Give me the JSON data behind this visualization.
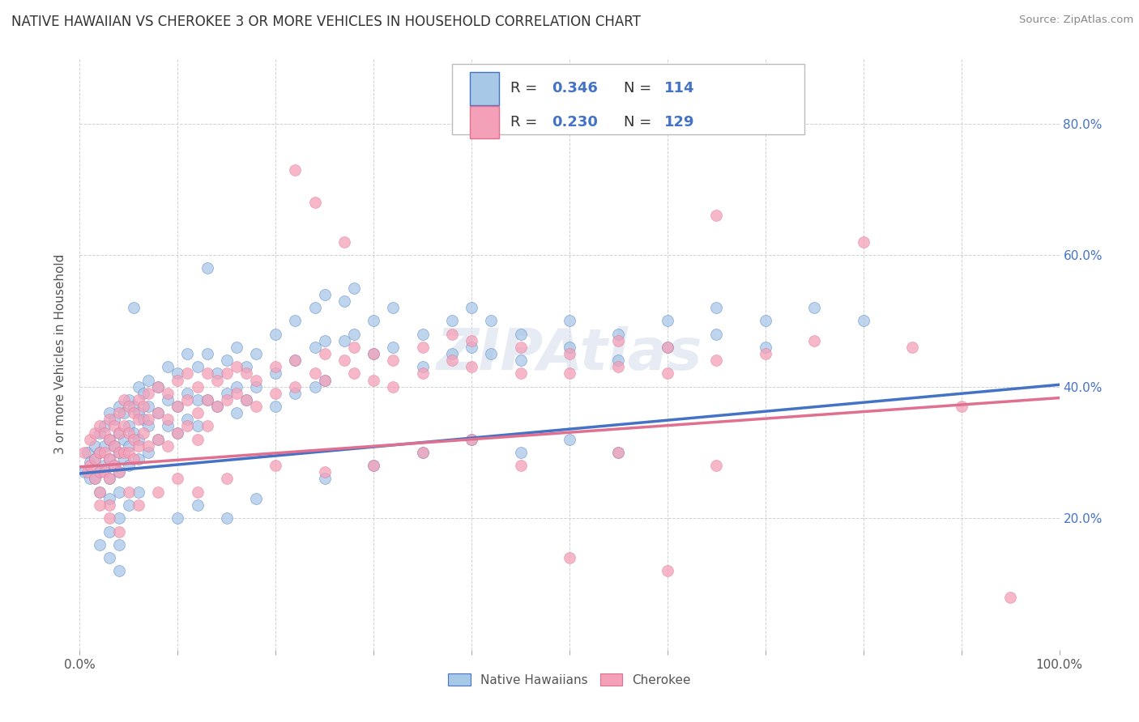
{
  "title": "NATIVE HAWAIIAN VS CHEROKEE 3 OR MORE VEHICLES IN HOUSEHOLD CORRELATION CHART",
  "source": "Source: ZipAtlas.com",
  "ylabel": "3 or more Vehicles in Household",
  "color_blue": "#a8c8e8",
  "color_pink": "#f4a0b8",
  "line_blue": "#4472c4",
  "line_pink": "#e07090",
  "blue_r": 0.346,
  "pink_r": 0.23,
  "xlim": [
    0.0,
    1.0
  ],
  "ylim": [
    0.0,
    0.9
  ],
  "blue_points": [
    [
      0.005,
      0.27
    ],
    [
      0.008,
      0.3
    ],
    [
      0.01,
      0.285
    ],
    [
      0.01,
      0.26
    ],
    [
      0.015,
      0.31
    ],
    [
      0.015,
      0.29
    ],
    [
      0.015,
      0.26
    ],
    [
      0.02,
      0.33
    ],
    [
      0.02,
      0.3
    ],
    [
      0.02,
      0.27
    ],
    [
      0.02,
      0.24
    ],
    [
      0.025,
      0.34
    ],
    [
      0.025,
      0.31
    ],
    [
      0.025,
      0.28
    ],
    [
      0.03,
      0.36
    ],
    [
      0.03,
      0.32
    ],
    [
      0.03,
      0.29
    ],
    [
      0.03,
      0.26
    ],
    [
      0.03,
      0.23
    ],
    [
      0.035,
      0.35
    ],
    [
      0.035,
      0.31
    ],
    [
      0.035,
      0.28
    ],
    [
      0.04,
      0.37
    ],
    [
      0.04,
      0.33
    ],
    [
      0.04,
      0.3
    ],
    [
      0.04,
      0.27
    ],
    [
      0.04,
      0.24
    ],
    [
      0.045,
      0.36
    ],
    [
      0.045,
      0.32
    ],
    [
      0.045,
      0.29
    ],
    [
      0.05,
      0.38
    ],
    [
      0.05,
      0.34
    ],
    [
      0.05,
      0.31
    ],
    [
      0.05,
      0.28
    ],
    [
      0.055,
      0.52
    ],
    [
      0.055,
      0.37
    ],
    [
      0.055,
      0.33
    ],
    [
      0.06,
      0.4
    ],
    [
      0.06,
      0.36
    ],
    [
      0.06,
      0.32
    ],
    [
      0.06,
      0.29
    ],
    [
      0.065,
      0.39
    ],
    [
      0.065,
      0.35
    ],
    [
      0.07,
      0.41
    ],
    [
      0.07,
      0.37
    ],
    [
      0.07,
      0.34
    ],
    [
      0.07,
      0.3
    ],
    [
      0.08,
      0.4
    ],
    [
      0.08,
      0.36
    ],
    [
      0.08,
      0.32
    ],
    [
      0.09,
      0.43
    ],
    [
      0.09,
      0.38
    ],
    [
      0.09,
      0.34
    ],
    [
      0.1,
      0.42
    ],
    [
      0.1,
      0.37
    ],
    [
      0.1,
      0.33
    ],
    [
      0.11,
      0.45
    ],
    [
      0.11,
      0.39
    ],
    [
      0.11,
      0.35
    ],
    [
      0.12,
      0.43
    ],
    [
      0.12,
      0.38
    ],
    [
      0.12,
      0.34
    ],
    [
      0.13,
      0.58
    ],
    [
      0.13,
      0.45
    ],
    [
      0.13,
      0.38
    ],
    [
      0.14,
      0.42
    ],
    [
      0.14,
      0.37
    ],
    [
      0.15,
      0.44
    ],
    [
      0.15,
      0.39
    ],
    [
      0.16,
      0.46
    ],
    [
      0.16,
      0.4
    ],
    [
      0.16,
      0.36
    ],
    [
      0.17,
      0.43
    ],
    [
      0.17,
      0.38
    ],
    [
      0.18,
      0.45
    ],
    [
      0.18,
      0.4
    ],
    [
      0.2,
      0.48
    ],
    [
      0.2,
      0.42
    ],
    [
      0.2,
      0.37
    ],
    [
      0.22,
      0.5
    ],
    [
      0.22,
      0.44
    ],
    [
      0.22,
      0.39
    ],
    [
      0.24,
      0.52
    ],
    [
      0.24,
      0.46
    ],
    [
      0.24,
      0.4
    ],
    [
      0.25,
      0.54
    ],
    [
      0.25,
      0.47
    ],
    [
      0.25,
      0.41
    ],
    [
      0.27,
      0.53
    ],
    [
      0.27,
      0.47
    ],
    [
      0.28,
      0.55
    ],
    [
      0.28,
      0.48
    ],
    [
      0.3,
      0.5
    ],
    [
      0.3,
      0.45
    ],
    [
      0.32,
      0.52
    ],
    [
      0.32,
      0.46
    ],
    [
      0.35,
      0.48
    ],
    [
      0.35,
      0.43
    ],
    [
      0.38,
      0.5
    ],
    [
      0.38,
      0.45
    ],
    [
      0.4,
      0.52
    ],
    [
      0.4,
      0.46
    ],
    [
      0.42,
      0.5
    ],
    [
      0.42,
      0.45
    ],
    [
      0.45,
      0.48
    ],
    [
      0.45,
      0.44
    ],
    [
      0.5,
      0.5
    ],
    [
      0.5,
      0.46
    ],
    [
      0.55,
      0.48
    ],
    [
      0.55,
      0.44
    ],
    [
      0.6,
      0.5
    ],
    [
      0.6,
      0.46
    ],
    [
      0.65,
      0.52
    ],
    [
      0.65,
      0.48
    ],
    [
      0.7,
      0.5
    ],
    [
      0.7,
      0.46
    ],
    [
      0.75,
      0.52
    ],
    [
      0.8,
      0.5
    ],
    [
      0.02,
      0.16
    ],
    [
      0.03,
      0.18
    ],
    [
      0.03,
      0.14
    ],
    [
      0.04,
      0.2
    ],
    [
      0.04,
      0.16
    ],
    [
      0.04,
      0.12
    ],
    [
      0.05,
      0.22
    ],
    [
      0.06,
      0.24
    ],
    [
      0.1,
      0.2
    ],
    [
      0.12,
      0.22
    ],
    [
      0.15,
      0.2
    ],
    [
      0.18,
      0.23
    ],
    [
      0.25,
      0.26
    ],
    [
      0.3,
      0.28
    ],
    [
      0.35,
      0.3
    ],
    [
      0.4,
      0.32
    ],
    [
      0.45,
      0.3
    ],
    [
      0.5,
      0.32
    ],
    [
      0.55,
      0.3
    ]
  ],
  "pink_points": [
    [
      0.005,
      0.3
    ],
    [
      0.008,
      0.27
    ],
    [
      0.01,
      0.32
    ],
    [
      0.01,
      0.28
    ],
    [
      0.015,
      0.33
    ],
    [
      0.015,
      0.29
    ],
    [
      0.015,
      0.26
    ],
    [
      0.02,
      0.34
    ],
    [
      0.02,
      0.3
    ],
    [
      0.02,
      0.27
    ],
    [
      0.02,
      0.24
    ],
    [
      0.025,
      0.33
    ],
    [
      0.025,
      0.3
    ],
    [
      0.025,
      0.27
    ],
    [
      0.03,
      0.35
    ],
    [
      0.03,
      0.32
    ],
    [
      0.03,
      0.29
    ],
    [
      0.03,
      0.26
    ],
    [
      0.03,
      0.22
    ],
    [
      0.035,
      0.34
    ],
    [
      0.035,
      0.31
    ],
    [
      0.035,
      0.28
    ],
    [
      0.04,
      0.36
    ],
    [
      0.04,
      0.33
    ],
    [
      0.04,
      0.3
    ],
    [
      0.04,
      0.27
    ],
    [
      0.045,
      0.38
    ],
    [
      0.045,
      0.34
    ],
    [
      0.045,
      0.3
    ],
    [
      0.05,
      0.37
    ],
    [
      0.05,
      0.33
    ],
    [
      0.05,
      0.3
    ],
    [
      0.055,
      0.36
    ],
    [
      0.055,
      0.32
    ],
    [
      0.055,
      0.29
    ],
    [
      0.06,
      0.38
    ],
    [
      0.06,
      0.35
    ],
    [
      0.06,
      0.31
    ],
    [
      0.065,
      0.37
    ],
    [
      0.065,
      0.33
    ],
    [
      0.07,
      0.39
    ],
    [
      0.07,
      0.35
    ],
    [
      0.07,
      0.31
    ],
    [
      0.08,
      0.4
    ],
    [
      0.08,
      0.36
    ],
    [
      0.08,
      0.32
    ],
    [
      0.09,
      0.39
    ],
    [
      0.09,
      0.35
    ],
    [
      0.09,
      0.31
    ],
    [
      0.1,
      0.41
    ],
    [
      0.1,
      0.37
    ],
    [
      0.1,
      0.33
    ],
    [
      0.11,
      0.42
    ],
    [
      0.11,
      0.38
    ],
    [
      0.11,
      0.34
    ],
    [
      0.12,
      0.4
    ],
    [
      0.12,
      0.36
    ],
    [
      0.12,
      0.32
    ],
    [
      0.13,
      0.42
    ],
    [
      0.13,
      0.38
    ],
    [
      0.13,
      0.34
    ],
    [
      0.14,
      0.41
    ],
    [
      0.14,
      0.37
    ],
    [
      0.15,
      0.42
    ],
    [
      0.15,
      0.38
    ],
    [
      0.16,
      0.43
    ],
    [
      0.16,
      0.39
    ],
    [
      0.17,
      0.42
    ],
    [
      0.17,
      0.38
    ],
    [
      0.18,
      0.41
    ],
    [
      0.18,
      0.37
    ],
    [
      0.2,
      0.43
    ],
    [
      0.2,
      0.39
    ],
    [
      0.22,
      0.73
    ],
    [
      0.22,
      0.44
    ],
    [
      0.22,
      0.4
    ],
    [
      0.24,
      0.68
    ],
    [
      0.24,
      0.42
    ],
    [
      0.25,
      0.45
    ],
    [
      0.25,
      0.41
    ],
    [
      0.27,
      0.62
    ],
    [
      0.27,
      0.44
    ],
    [
      0.28,
      0.46
    ],
    [
      0.28,
      0.42
    ],
    [
      0.3,
      0.45
    ],
    [
      0.3,
      0.41
    ],
    [
      0.32,
      0.44
    ],
    [
      0.32,
      0.4
    ],
    [
      0.35,
      0.46
    ],
    [
      0.35,
      0.42
    ],
    [
      0.38,
      0.48
    ],
    [
      0.38,
      0.44
    ],
    [
      0.4,
      0.47
    ],
    [
      0.4,
      0.43
    ],
    [
      0.45,
      0.46
    ],
    [
      0.45,
      0.42
    ],
    [
      0.5,
      0.45
    ],
    [
      0.5,
      0.42
    ],
    [
      0.55,
      0.47
    ],
    [
      0.55,
      0.43
    ],
    [
      0.6,
      0.46
    ],
    [
      0.6,
      0.42
    ],
    [
      0.65,
      0.66
    ],
    [
      0.65,
      0.44
    ],
    [
      0.7,
      0.45
    ],
    [
      0.75,
      0.47
    ],
    [
      0.8,
      0.62
    ],
    [
      0.85,
      0.46
    ],
    [
      0.9,
      0.37
    ],
    [
      0.95,
      0.08
    ],
    [
      0.02,
      0.22
    ],
    [
      0.03,
      0.2
    ],
    [
      0.04,
      0.18
    ],
    [
      0.05,
      0.24
    ],
    [
      0.06,
      0.22
    ],
    [
      0.08,
      0.24
    ],
    [
      0.1,
      0.26
    ],
    [
      0.12,
      0.24
    ],
    [
      0.15,
      0.26
    ],
    [
      0.2,
      0.28
    ],
    [
      0.25,
      0.27
    ],
    [
      0.3,
      0.28
    ],
    [
      0.35,
      0.3
    ],
    [
      0.4,
      0.32
    ],
    [
      0.45,
      0.28
    ],
    [
      0.5,
      0.14
    ],
    [
      0.55,
      0.3
    ],
    [
      0.6,
      0.12
    ],
    [
      0.65,
      0.28
    ]
  ]
}
